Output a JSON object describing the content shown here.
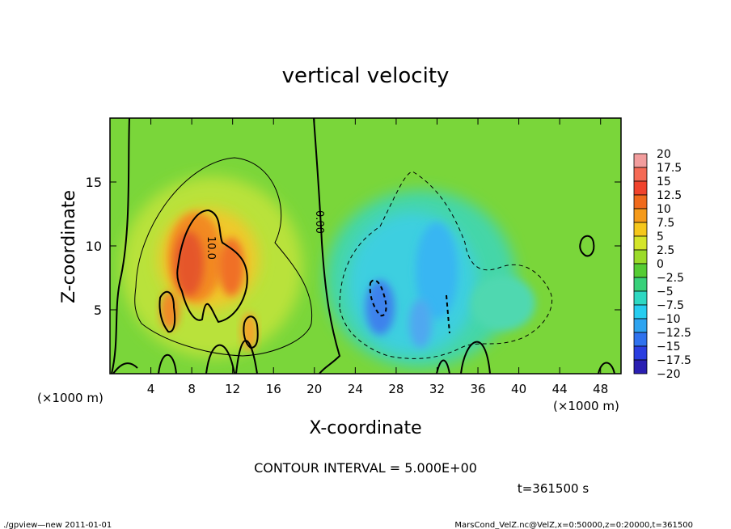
{
  "chart_data": {
    "type": "heatmap",
    "title": "vertical velocity",
    "xlabel": "X-coordinate",
    "ylabel": "Z-coordinate",
    "x_unit": "(×1000 m)",
    "xlim": [
      0,
      50
    ],
    "ylim": [
      0,
      20
    ],
    "x_ticks": [
      4,
      8,
      12,
      16,
      20,
      24,
      28,
      32,
      36,
      40,
      44,
      48
    ],
    "y_ticks": [
      5,
      10,
      15
    ],
    "contour_interval_text": "CONTOUR INTERVAL = 5.000E+00",
    "contour_labels": [
      {
        "text": "0.00",
        "x": 20.7,
        "z": 11.5
      },
      {
        "text": "10.0",
        "x": 9.7,
        "z": 10.0
      }
    ],
    "colorbar": {
      "labels": [
        "20",
        "17.5",
        "15",
        "12.5",
        "10",
        "7.5",
        "5",
        "2.5",
        "0",
        "−2.5",
        "−5",
        "−7.5",
        "−10",
        "−12.5",
        "−15",
        "−17.5",
        "−20"
      ],
      "colors": [
        "#f29d9d",
        "#f56a55",
        "#f0432c",
        "#f06a1c",
        "#f59a1a",
        "#f5c71c",
        "#d4e52a",
        "#9bdb2a",
        "#55cc34",
        "#38d17a",
        "#2ed8c2",
        "#26cdf0",
        "#2ea4f0",
        "#2f72ee",
        "#2a3ee0",
        "#2a1fb2",
        "#5a25a8"
      ]
    },
    "time_label": "t=361500 s"
  },
  "footer": {
    "left": "./gpview—new   2011-01-01",
    "right": "MarsCond_VelZ.nc@VelZ,x=0:50000,z=0:20000,t=361500"
  }
}
